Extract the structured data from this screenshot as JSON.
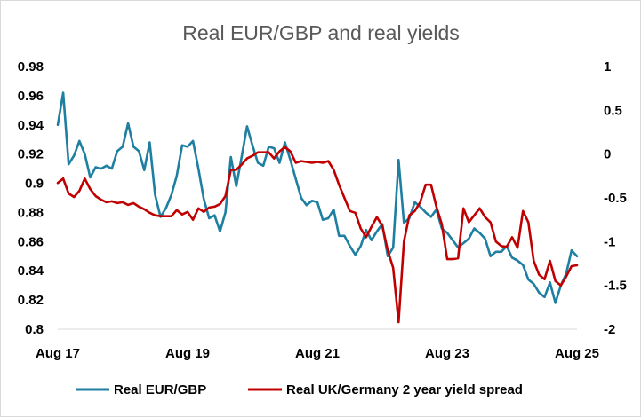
{
  "chart_data": {
    "type": "line",
    "title": "Real EUR/GBP and real yields",
    "xlabel": "",
    "ylabel": "",
    "x_ticks": [
      "Aug 17",
      "Aug 19",
      "Aug 21",
      "Aug 23",
      "Aug 25"
    ],
    "y_left_ticks": [
      "0.98",
      "0.96",
      "0.94",
      "0.92",
      "0.9",
      "0.88",
      "0.86",
      "0.84",
      "0.82",
      "0.8"
    ],
    "y_right_ticks": [
      "1",
      "0.5",
      "0",
      "-0.5",
      "-1",
      "-1.5",
      "-2"
    ],
    "ylim_left": [
      0.8,
      0.98
    ],
    "ylim_right": [
      -2,
      1
    ],
    "x_range": [
      "2017-08",
      "2025-08"
    ],
    "legend_position": "bottom",
    "grid": false,
    "series": [
      {
        "name": "Real EUR/GBP",
        "axis": "left",
        "color": "#1f7fa1",
        "points": [
          [
            "2017-08",
            0.94
          ],
          [
            "2017-09",
            0.962
          ],
          [
            "2017-10",
            0.913
          ],
          [
            "2017-11",
            0.919
          ],
          [
            "2017-12",
            0.929
          ],
          [
            "2018-01",
            0.92
          ],
          [
            "2018-02",
            0.904
          ],
          [
            "2018-03",
            0.911
          ],
          [
            "2018-04",
            0.91
          ],
          [
            "2018-05",
            0.912
          ],
          [
            "2018-06",
            0.91
          ],
          [
            "2018-07",
            0.922
          ],
          [
            "2018-08",
            0.925
          ],
          [
            "2018-09",
            0.941
          ],
          [
            "2018-10",
            0.925
          ],
          [
            "2018-11",
            0.922
          ],
          [
            "2018-12",
            0.909
          ],
          [
            "2019-01",
            0.928
          ],
          [
            "2019-02",
            0.892
          ],
          [
            "2019-03",
            0.877
          ],
          [
            "2019-04",
            0.883
          ],
          [
            "2019-05",
            0.892
          ],
          [
            "2019-06",
            0.905
          ],
          [
            "2019-07",
            0.926
          ],
          [
            "2019-08",
            0.925
          ],
          [
            "2019-09",
            0.929
          ],
          [
            "2019-10",
            0.91
          ],
          [
            "2019-11",
            0.889
          ],
          [
            "2019-12",
            0.876
          ],
          [
            "2020-01",
            0.878
          ],
          [
            "2020-02",
            0.867
          ],
          [
            "2020-03",
            0.88
          ],
          [
            "2020-04",
            0.918
          ],
          [
            "2020-05",
            0.898
          ],
          [
            "2020-06",
            0.918
          ],
          [
            "2020-07",
            0.939
          ],
          [
            "2020-08",
            0.926
          ],
          [
            "2020-09",
            0.914
          ],
          [
            "2020-10",
            0.912
          ],
          [
            "2020-11",
            0.925
          ],
          [
            "2020-12",
            0.924
          ],
          [
            "2021-01",
            0.914
          ],
          [
            "2021-02",
            0.928
          ],
          [
            "2021-03",
            0.916
          ],
          [
            "2021-04",
            0.903
          ],
          [
            "2021-05",
            0.89
          ],
          [
            "2021-06",
            0.885
          ],
          [
            "2021-07",
            0.888
          ],
          [
            "2021-08",
            0.887
          ],
          [
            "2021-09",
            0.875
          ],
          [
            "2021-10",
            0.876
          ],
          [
            "2021-11",
            0.882
          ],
          [
            "2021-12",
            0.864
          ],
          [
            "2022-01",
            0.864
          ],
          [
            "2022-02",
            0.857
          ],
          [
            "2022-03",
            0.851
          ],
          [
            "2022-04",
            0.857
          ],
          [
            "2022-05",
            0.868
          ],
          [
            "2022-06",
            0.861
          ],
          [
            "2022-07",
            0.867
          ],
          [
            "2022-08",
            0.872
          ],
          [
            "2022-09",
            0.85
          ],
          [
            "2022-10",
            0.856
          ],
          [
            "2022-11",
            0.916
          ],
          [
            "2022-12",
            0.873
          ],
          [
            "2023-01",
            0.876
          ],
          [
            "2023-02",
            0.887
          ],
          [
            "2023-03",
            0.884
          ],
          [
            "2023-04",
            0.88
          ],
          [
            "2023-05",
            0.877
          ],
          [
            "2023-06",
            0.882
          ],
          [
            "2023-07",
            0.869
          ],
          [
            "2023-08",
            0.866
          ],
          [
            "2023-09",
            0.861
          ],
          [
            "2023-10",
            0.856
          ],
          [
            "2023-11",
            0.859
          ],
          [
            "2023-12",
            0.862
          ],
          [
            "2024-01",
            0.869
          ],
          [
            "2024-02",
            0.866
          ],
          [
            "2024-03",
            0.862
          ],
          [
            "2024-04",
            0.85
          ],
          [
            "2024-05",
            0.853
          ],
          [
            "2024-06",
            0.853
          ],
          [
            "2024-07",
            0.857
          ],
          [
            "2024-08",
            0.849
          ],
          [
            "2024-09",
            0.847
          ],
          [
            "2024-10",
            0.844
          ],
          [
            "2024-11",
            0.834
          ],
          [
            "2024-12",
            0.831
          ],
          [
            "2025-01",
            0.825
          ],
          [
            "2025-02",
            0.822
          ],
          [
            "2025-03",
            0.832
          ],
          [
            "2025-04",
            0.818
          ],
          [
            "2025-05",
            0.83
          ],
          [
            "2025-06",
            0.838
          ],
          [
            "2025-07",
            0.854
          ],
          [
            "2025-08",
            0.85
          ]
        ]
      },
      {
        "name": "Real UK/Germany 2 year yield spread",
        "axis": "right",
        "color": "#c00000",
        "points": [
          [
            "2017-08",
            -0.33
          ],
          [
            "2017-09",
            -0.28
          ],
          [
            "2017-10",
            -0.45
          ],
          [
            "2017-11",
            -0.49
          ],
          [
            "2017-12",
            -0.42
          ],
          [
            "2018-01",
            -0.28
          ],
          [
            "2018-02",
            -0.4
          ],
          [
            "2018-03",
            -0.48
          ],
          [
            "2018-04",
            -0.52
          ],
          [
            "2018-05",
            -0.55
          ],
          [
            "2018-06",
            -0.54
          ],
          [
            "2018-07",
            -0.56
          ],
          [
            "2018-08",
            -0.55
          ],
          [
            "2018-09",
            -0.58
          ],
          [
            "2018-10",
            -0.56
          ],
          [
            "2018-11",
            -0.6
          ],
          [
            "2018-12",
            -0.63
          ],
          [
            "2019-01",
            -0.67
          ],
          [
            "2019-02",
            -0.7
          ],
          [
            "2019-03",
            -0.71
          ],
          [
            "2019-04",
            -0.71
          ],
          [
            "2019-05",
            -0.71
          ],
          [
            "2019-06",
            -0.64
          ],
          [
            "2019-07",
            -0.69
          ],
          [
            "2019-08",
            -0.66
          ],
          [
            "2019-09",
            -0.75
          ],
          [
            "2019-10",
            -0.62
          ],
          [
            "2019-11",
            -0.66
          ],
          [
            "2019-12",
            -0.61
          ],
          [
            "2020-01",
            -0.6
          ],
          [
            "2020-02",
            -0.57
          ],
          [
            "2020-03",
            -0.48
          ],
          [
            "2020-04",
            -0.18
          ],
          [
            "2020-05",
            -0.18
          ],
          [
            "2020-06",
            -0.12
          ],
          [
            "2020-07",
            -0.05
          ],
          [
            "2020-08",
            -0.02
          ],
          [
            "2020-09",
            0.02
          ],
          [
            "2020-10",
            0.02
          ],
          [
            "2020-11",
            0.02
          ],
          [
            "2020-12",
            -0.05
          ],
          [
            "2021-01",
            0.03
          ],
          [
            "2021-02",
            0.08
          ],
          [
            "2021-03",
            0.03
          ],
          [
            "2021-04",
            -0.1
          ],
          [
            "2021-05",
            -0.08
          ],
          [
            "2021-06",
            -0.09
          ],
          [
            "2021-07",
            -0.1
          ],
          [
            "2021-08",
            -0.09
          ],
          [
            "2021-09",
            -0.1
          ],
          [
            "2021-10",
            -0.08
          ],
          [
            "2021-11",
            -0.18
          ],
          [
            "2021-12",
            -0.35
          ],
          [
            "2022-01",
            -0.5
          ],
          [
            "2022-02",
            -0.65
          ],
          [
            "2022-03",
            -0.67
          ],
          [
            "2022-04",
            -0.85
          ],
          [
            "2022-05",
            -0.95
          ],
          [
            "2022-06",
            -0.83
          ],
          [
            "2022-07",
            -0.72
          ],
          [
            "2022-08",
            -0.82
          ],
          [
            "2022-09",
            -1.1
          ],
          [
            "2022-10",
            -1.3
          ],
          [
            "2022-11",
            -1.92
          ],
          [
            "2022-12",
            -1.0
          ],
          [
            "2023-01",
            -0.7
          ],
          [
            "2023-02",
            -0.65
          ],
          [
            "2023-03",
            -0.55
          ],
          [
            "2023-04",
            -0.35
          ],
          [
            "2023-05",
            -0.35
          ],
          [
            "2023-06",
            -0.6
          ],
          [
            "2023-07",
            -0.8
          ],
          [
            "2023-08",
            -1.2
          ],
          [
            "2023-09",
            -1.2
          ],
          [
            "2023-10",
            -1.19
          ],
          [
            "2023-11",
            -0.62
          ],
          [
            "2023-12",
            -0.78
          ],
          [
            "2024-01",
            -0.7
          ],
          [
            "2024-02",
            -0.62
          ],
          [
            "2024-03",
            -0.72
          ],
          [
            "2024-04",
            -0.78
          ],
          [
            "2024-05",
            -1.0
          ],
          [
            "2024-06",
            -1.05
          ],
          [
            "2024-07",
            -1.06
          ],
          [
            "2024-08",
            -0.95
          ],
          [
            "2024-09",
            -1.07
          ],
          [
            "2024-10",
            -0.65
          ],
          [
            "2024-11",
            -0.78
          ],
          [
            "2024-12",
            -1.22
          ],
          [
            "2025-01",
            -1.38
          ],
          [
            "2025-02",
            -1.43
          ],
          [
            "2025-03",
            -1.22
          ],
          [
            "2025-04",
            -1.45
          ],
          [
            "2025-05",
            -1.5
          ],
          [
            "2025-06",
            -1.4
          ],
          [
            "2025-07",
            -1.28
          ],
          [
            "2025-08",
            -1.27
          ]
        ]
      }
    ]
  }
}
